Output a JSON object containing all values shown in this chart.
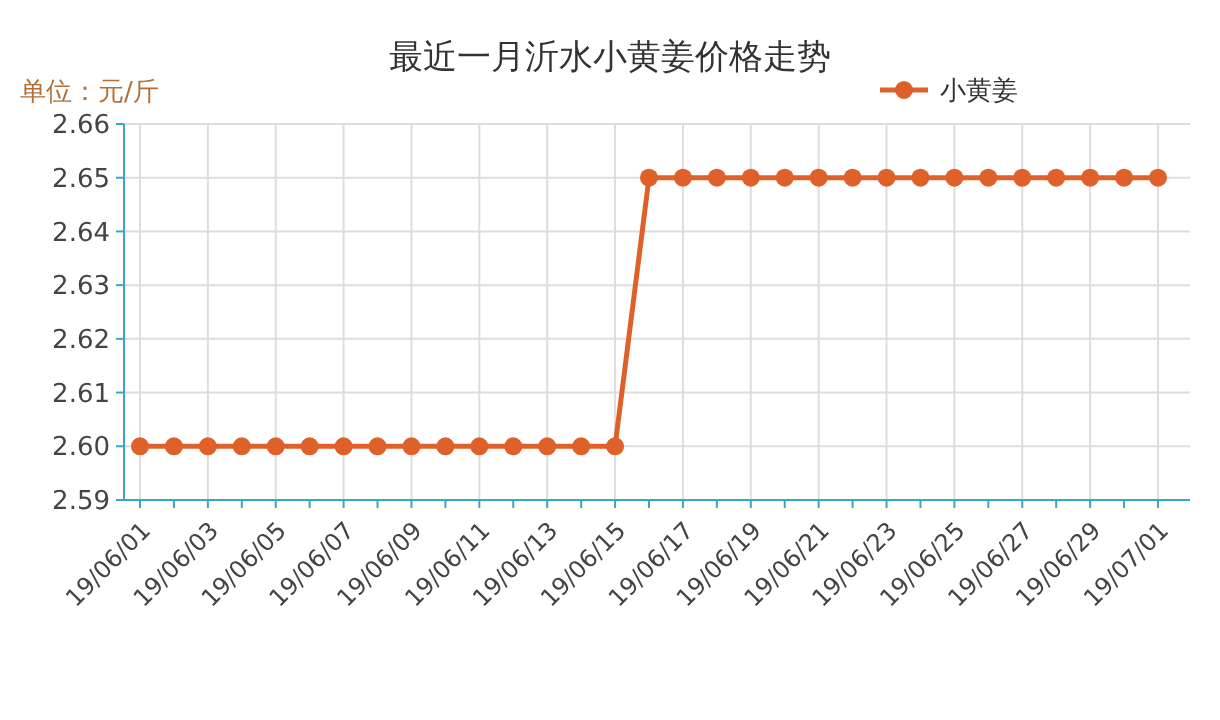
{
  "chart_data": {
    "type": "line",
    "title": "最近一月沂水小黄姜价格走势",
    "ylabel": "单位：元/斤",
    "categories": [
      "19/06/01",
      null,
      "19/06/03",
      null,
      "19/06/05",
      null,
      "19/06/07",
      null,
      "19/06/09",
      null,
      "19/06/11",
      null,
      "19/06/13",
      null,
      "19/06/15",
      null,
      "19/06/17",
      null,
      "19/06/19",
      null,
      "19/06/21",
      null,
      "19/06/23",
      null,
      "19/06/25",
      null,
      "19/06/27",
      null,
      "19/06/29",
      null,
      "19/07/01"
    ],
    "series": [
      {
        "name": "小黄姜",
        "color": "#e0602a",
        "values": [
          2.6,
          2.6,
          2.6,
          2.6,
          2.6,
          2.6,
          2.6,
          2.6,
          2.6,
          2.6,
          2.6,
          2.6,
          2.6,
          2.6,
          2.6,
          2.65,
          2.65,
          2.65,
          2.65,
          2.65,
          2.65,
          2.65,
          2.65,
          2.65,
          2.65,
          2.65,
          2.65,
          2.65,
          2.65,
          2.65,
          2.65
        ]
      }
    ],
    "ylim": [
      2.59,
      2.66
    ],
    "yticks": [
      {
        "value": 2.59,
        "label": "2.59"
      },
      {
        "value": 2.6,
        "label": "2.60"
      },
      {
        "value": 2.61,
        "label": "2.61"
      },
      {
        "value": 2.62,
        "label": "2.62"
      },
      {
        "value": 2.63,
        "label": "2.63"
      },
      {
        "value": 2.64,
        "label": "2.64"
      },
      {
        "value": 2.65,
        "label": "2.65"
      },
      {
        "value": 2.66,
        "label": "2.66"
      }
    ],
    "grid": true,
    "legend": "top right",
    "marker": "circle",
    "line_style": "solid"
  }
}
